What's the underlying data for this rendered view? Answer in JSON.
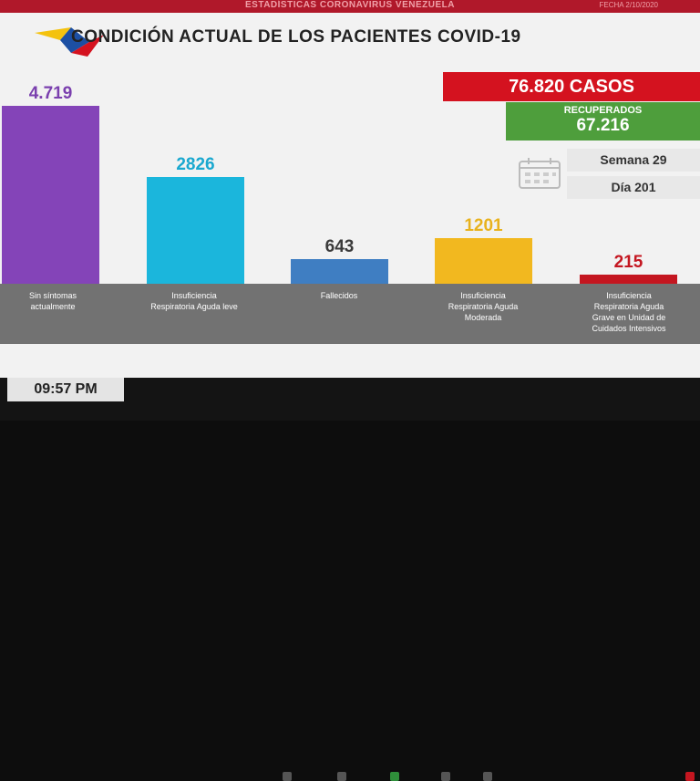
{
  "header": {
    "banner": "ESTADÍSTICAS CORONAVIRUS VENEZUELA",
    "date": "FECHA 2/10/2020"
  },
  "title": "CONDICIÓN ACTUAL DE LOS PACIENTES COVID-19",
  "summary": {
    "cases": "76.820 CASOS",
    "recovered_label": "RECUPERADOS",
    "recovered_value": "67.216",
    "week": "Semana 29",
    "day": "Día 201"
  },
  "colors": {
    "purple": "#8444b8",
    "cyan": "#1bb6dc",
    "blue": "#3f7ec2",
    "yellow": "#f2b81f",
    "red": "#c41620"
  },
  "chart_data": {
    "type": "bar",
    "title": "CONDICIÓN ACTUAL DE LOS PACIENTES COVID-19",
    "categories": [
      "Sin síntomas actualmente",
      "Insuficiencia Respiratoria Aguda leve",
      "Fallecidos",
      "Insuficiencia Respiratoria Aguda Moderada",
      "Insuficiencia Respiratoria Aguda Grave en Unidad de Cuidados Intensivos"
    ],
    "values": [
      4719,
      2826,
      643,
      1201,
      215
    ],
    "value_labels": [
      "4.719",
      "2826",
      "643",
      "1201",
      "215"
    ],
    "bar_colors": [
      "#8444b8",
      "#1bb6dc",
      "#3f7ec2",
      "#f2b81f",
      "#c41620"
    ],
    "label_colors": [
      "#7a3fae",
      "#1aa8cf",
      "#3a3a3a",
      "#e8b21d",
      "#c41620"
    ],
    "ylim": [
      0,
      4719
    ]
  },
  "footer": {
    "clock": "09:57 PM"
  }
}
